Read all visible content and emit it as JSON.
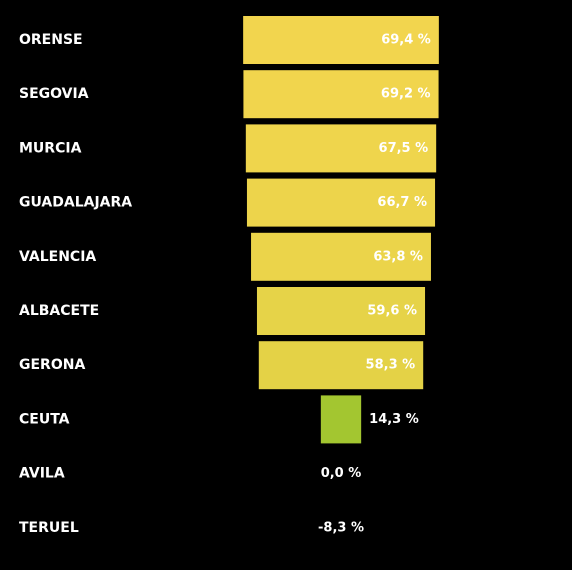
{
  "chart_data": {
    "type": "bar",
    "orientation": "horizontal",
    "layout": "funnel",
    "categories": [
      "ORENSE",
      "SEGOVIA",
      "MURCIA",
      "GUADALAJARA",
      "VALENCIA",
      "ALBACETE",
      "GERONA",
      "CEUTA",
      "AVILA",
      "TERUEL"
    ],
    "values": [
      69.4,
      69.2,
      67.5,
      66.7,
      63.8,
      59.6,
      58.3,
      14.3,
      0.0,
      -8.3
    ],
    "value_labels": [
      "69,4 %",
      "69,2 %",
      "67,5 %",
      "66,7 %",
      "63,8 %",
      "59,6 %",
      "58,3 %",
      "14,3 %",
      "0,0 %",
      "-8,3 %"
    ],
    "bar_colors": [
      "#f2d54e",
      "#f1d54d",
      "#efd54c",
      "#edd44b",
      "#ebd44a",
      "#e6d348",
      "#e4d246",
      "#a3c630",
      null,
      null
    ],
    "title": "",
    "xlabel": "",
    "ylabel": "",
    "grid": false,
    "legend": "none",
    "background": "#000000",
    "label_color": "#ffffff"
  }
}
